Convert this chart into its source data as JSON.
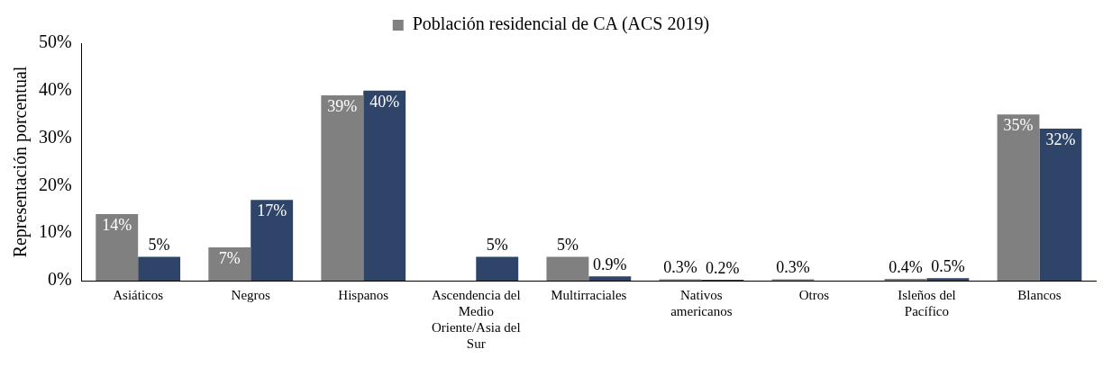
{
  "chart_data": {
    "type": "bar",
    "ylabel": "Representación porcentual",
    "categories": [
      "Asiáticos",
      "Negros",
      "Hispanos",
      "Ascendencia del Medio Oriente/Asia del Sur",
      "Multirraciales",
      "Nativos americanos",
      "Otros",
      "Isleños del Pacífico",
      "Blancos"
    ],
    "series": [
      {
        "name": "Población residencial de CA (ACS 2019)",
        "color": "#808080",
        "values": [
          14,
          7,
          39,
          null,
          5,
          0.3,
          0.3,
          0.4,
          35
        ],
        "value_labels": [
          "14%",
          "7%",
          "39%",
          null,
          "5%",
          "0.3%",
          "0.3%",
          "0.4%",
          "35%"
        ]
      },
      {
        "color": "#2e4468",
        "values": [
          5,
          17,
          40,
          5,
          0.9,
          0.2,
          null,
          0.5,
          32
        ],
        "value_labels": [
          "5%",
          "17%",
          "40%",
          "5%",
          "0.9%",
          "0.2%",
          null,
          "0.5%",
          "32%"
        ]
      }
    ],
    "ylim": [
      0,
      50
    ],
    "yticks": [
      {
        "value": 0,
        "label": "0%"
      },
      {
        "value": 10,
        "label": "10%"
      },
      {
        "value": 20,
        "label": "20%"
      },
      {
        "value": 30,
        "label": "30%"
      },
      {
        "value": 40,
        "label": "40%"
      },
      {
        "value": 50,
        "label": "50%"
      }
    ],
    "grid": false,
    "legend": "top"
  }
}
